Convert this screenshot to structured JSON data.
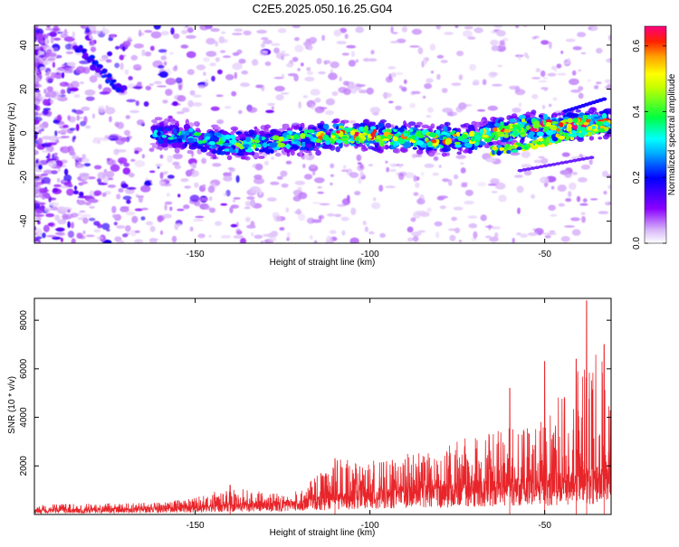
{
  "title": "C2E5.2025.050.16.25.G04",
  "chart_data": [
    {
      "type": "heatmap",
      "title": "C2E5.2025.050.16.25.G04",
      "xlabel": "Height of straight line (km)",
      "ylabel": "Frequency (Hz)",
      "xlim": [
        -196,
        -31
      ],
      "ylim": [
        -50,
        49
      ],
      "x_ticks": [
        -150,
        -100,
        -50
      ],
      "x_tick_labels": [
        "-150",
        "-100",
        "-50"
      ],
      "y_ticks": [
        -40,
        -20,
        0,
        20,
        40
      ],
      "y_tick_labels": [
        "-40",
        "-20",
        "0",
        "20",
        "40"
      ],
      "colorbar": {
        "label": "Normalized spectral amplitude",
        "range": [
          0,
          0.66
        ],
        "ticks": [
          0.0,
          0.2,
          0.4,
          0.6
        ],
        "tick_labels": [
          "0.0",
          "0.2",
          "0.4",
          "0.6"
        ],
        "colormap": "rainbow (white-violet-blue-cyan-green-yellow-orange-red-magenta)"
      },
      "main_trace": {
        "description_points_x": [
          -162,
          -150,
          -140,
          -130,
          -120,
          -110,
          -100,
          -90,
          -80,
          -70,
          -60,
          -50,
          -40,
          -31
        ],
        "center_freq": [
          0,
          -2,
          -5,
          -4,
          -3,
          -1,
          -1,
          -2,
          -3,
          -2,
          2,
          3,
          4,
          5
        ],
        "peak_amplitude": [
          0.3,
          0.4,
          0.45,
          0.42,
          0.45,
          0.62,
          0.6,
          0.55,
          0.6,
          0.5,
          0.62,
          0.6,
          0.64,
          0.55
        ]
      },
      "secondary_trace": {
        "x": [
          -65,
          -55,
          -45,
          -35,
          -31
        ],
        "center_freq": [
          -8,
          -6,
          -2,
          2,
          4
        ]
      },
      "grid": false
    },
    {
      "type": "line",
      "xlabel": "Height of straight line (km)",
      "ylabel": "SNR (10 * v/v)",
      "xlim": [
        -196,
        -31
      ],
      "ylim": [
        0,
        8900
      ],
      "x_ticks": [
        -150,
        -100,
        -50
      ],
      "x_tick_labels": [
        "-150",
        "-100",
        "-50"
      ],
      "y_ticks": [
        2000,
        4000,
        6000,
        8000
      ],
      "y_tick_labels": [
        "2000",
        "4000",
        "6000",
        "8000"
      ],
      "color": "#e8252a",
      "envelope": {
        "x": [
          -196,
          -180,
          -160,
          -150,
          -140,
          -130,
          -120,
          -110,
          -100,
          -90,
          -80,
          -70,
          -60,
          -50,
          -40,
          -35,
          -31
        ],
        "baseline": [
          200,
          200,
          250,
          300,
          400,
          450,
          500,
          800,
          900,
          1000,
          1100,
          1200,
          1300,
          1400,
          1600,
          1700,
          1800
        ],
        "peaks": [
          400,
          450,
          500,
          700,
          1200,
          900,
          1000,
          2300,
          2200,
          2500,
          2700,
          3300,
          3600,
          4000,
          6400,
          7200,
          5000
        ]
      },
      "spikes": [
        {
          "x": -140,
          "y": 1200
        },
        {
          "x": -110,
          "y": 2300
        },
        {
          "x": -60,
          "y": 5200
        },
        {
          "x": -50,
          "y": 6300
        },
        {
          "x": -41,
          "y": 6400
        },
        {
          "x": -38,
          "y": 8800
        },
        {
          "x": -33,
          "y": 7000
        }
      ],
      "grid": false
    }
  ]
}
